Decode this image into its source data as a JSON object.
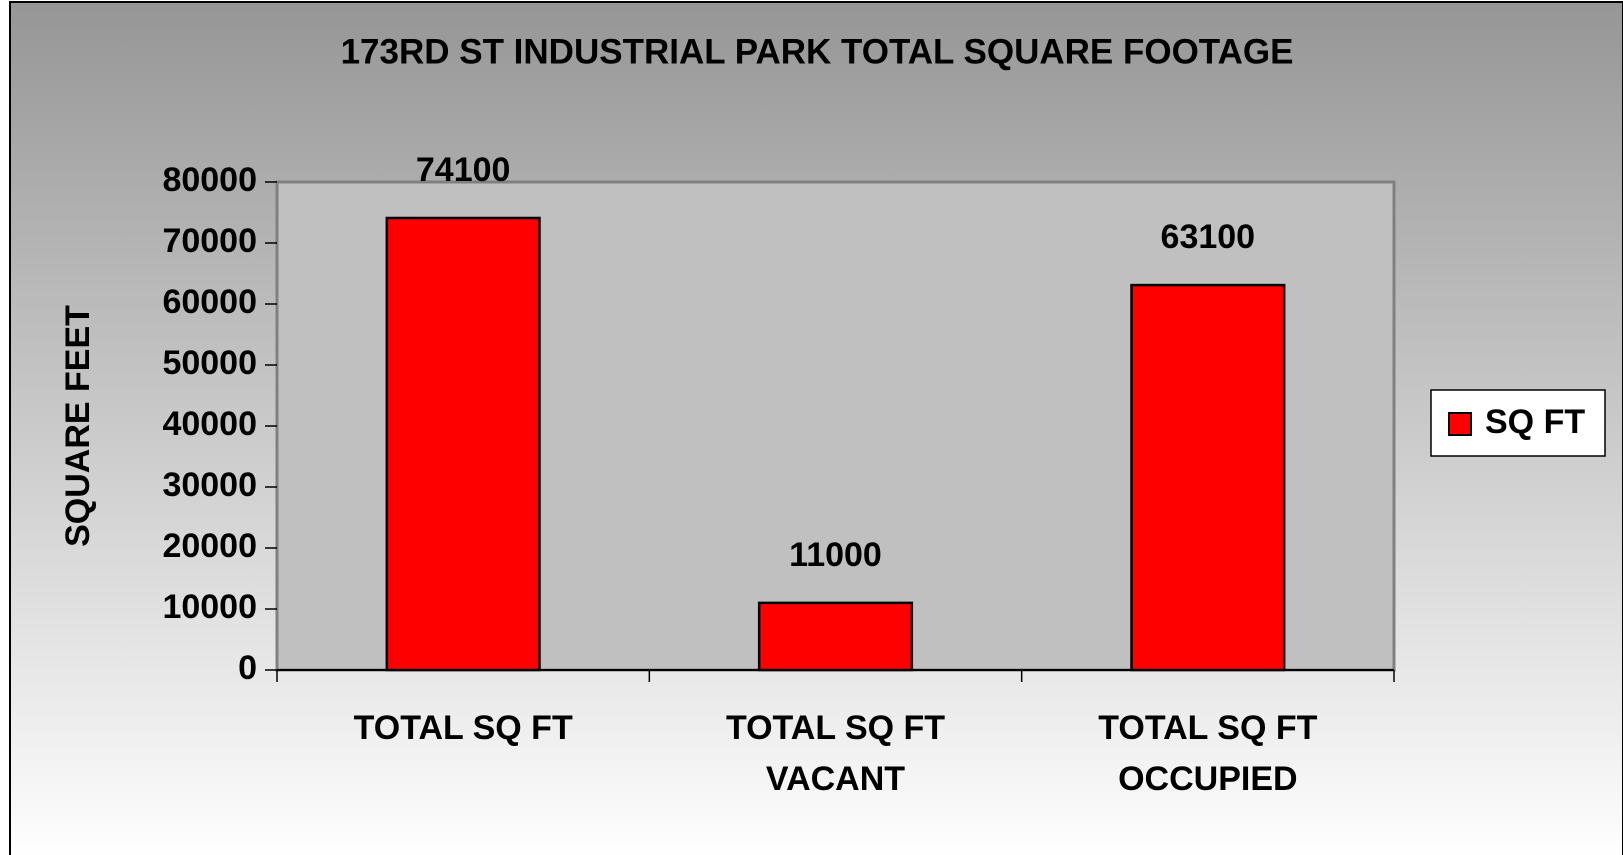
{
  "chart_data": {
    "type": "bar",
    "title": "173RD ST INDUSTRIAL PARK TOTAL SQUARE FOOTAGE",
    "y_label": "SQUARE FEET",
    "categories": [
      "TOTAL SQ  FT",
      "TOTAL SQ FT\nVACANT",
      "TOTAL SQ  FT\nOCCUPIED"
    ],
    "series": [
      {
        "name": "SQ FT",
        "color": "#ff0000",
        "values": [
          74100,
          11000,
          63100
        ]
      }
    ],
    "ylim": [
      0,
      80000
    ],
    "yticks": [
      0,
      10000,
      20000,
      30000,
      40000,
      50000,
      60000,
      70000,
      80000
    ],
    "legend": "right"
  }
}
